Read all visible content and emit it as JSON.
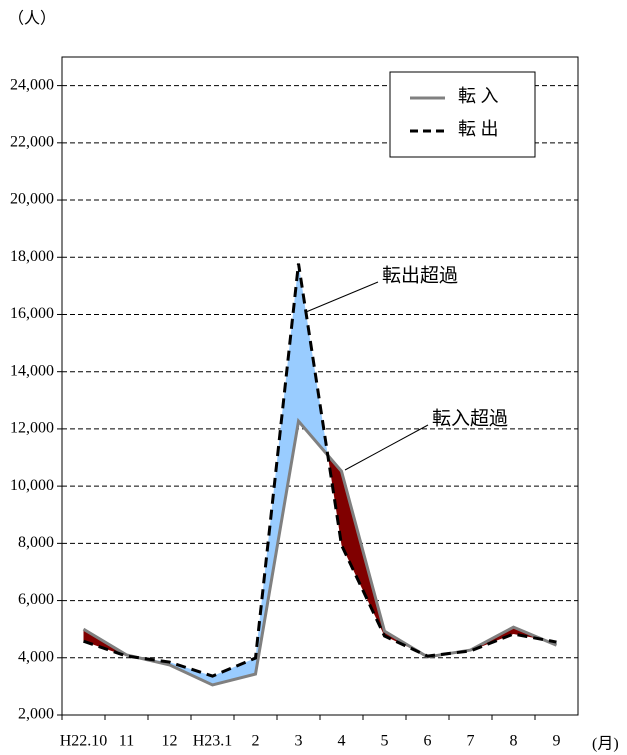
{
  "chart_data": {
    "type": "line",
    "y_unit": "（人）",
    "x_unit": "(月)",
    "categories": [
      "H22.10",
      "11",
      "12",
      "H23.1",
      "2",
      "3",
      "4",
      "5",
      "6",
      "7",
      "8",
      "9"
    ],
    "series": [
      {
        "name": "転 入",
        "color": "#808080",
        "dash": false,
        "values": [
          5000,
          4100,
          3750,
          3050,
          3430,
          12270,
          10520,
          4930,
          4030,
          4270,
          5070,
          4440
        ]
      },
      {
        "name": "転 出",
        "color": "#000000",
        "dash": true,
        "values": [
          4580,
          4060,
          3850,
          3360,
          3990,
          17780,
          7940,
          4760,
          4060,
          4240,
          4830,
          4550
        ]
      }
    ],
    "annotations": [
      {
        "text": "転出超過",
        "color": "#99ccff"
      },
      {
        "text": "転入超過",
        "color": "#800000"
      }
    ],
    "ylim": [
      2000,
      25000
    ],
    "yticks": [
      {
        "value": 2000,
        "label": "2,000"
      },
      {
        "value": 4000,
        "label": "4,000"
      },
      {
        "value": 6000,
        "label": "6,000"
      },
      {
        "value": 8000,
        "label": "8,000"
      },
      {
        "value": 10000,
        "label": "10,000"
      },
      {
        "value": 12000,
        "label": "12,000"
      },
      {
        "value": 14000,
        "label": "14,000"
      },
      {
        "value": 16000,
        "label": "16,000"
      },
      {
        "value": 18000,
        "label": "18,000"
      },
      {
        "value": 20000,
        "label": "20,000"
      },
      {
        "value": 22000,
        "label": "22,000"
      },
      {
        "value": 24000,
        "label": "24,000"
      }
    ],
    "grid": true
  }
}
